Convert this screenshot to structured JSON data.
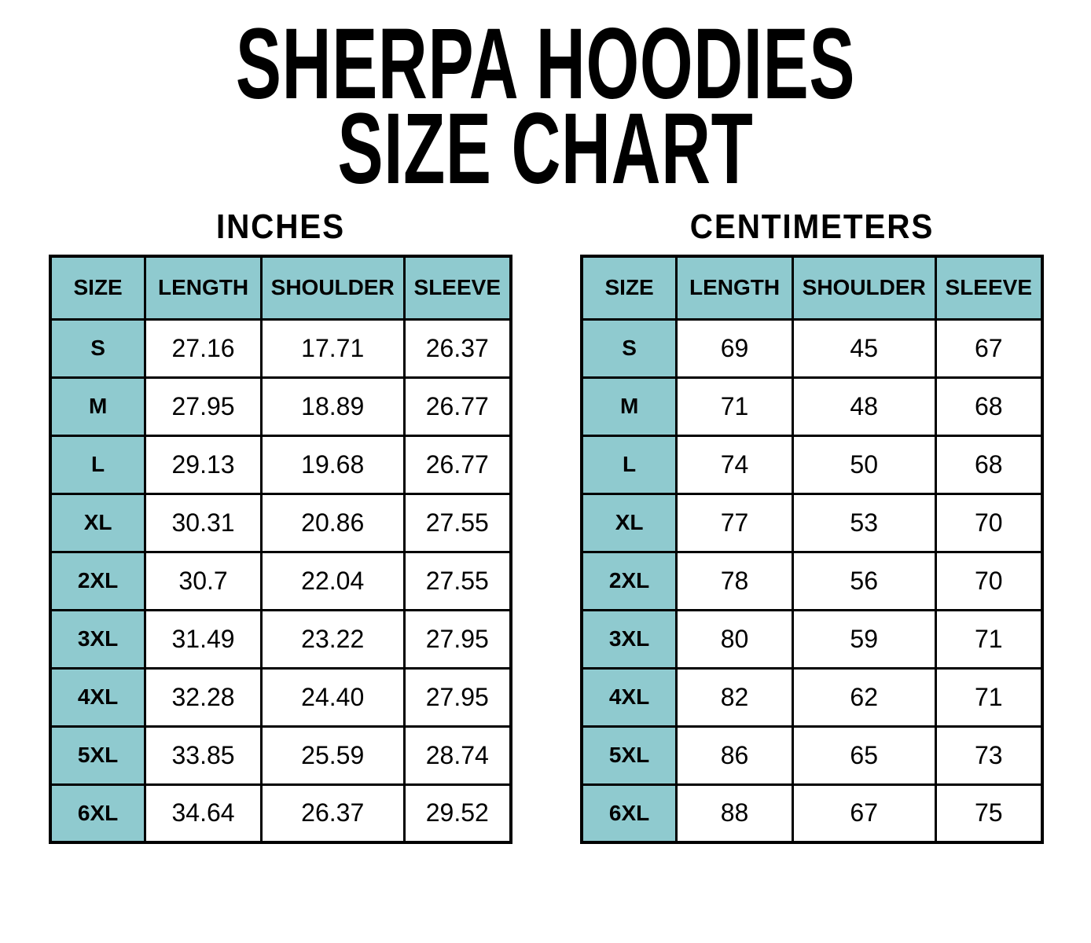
{
  "title": {
    "line1": "SHERPA HOODIES",
    "line2": "SIZE CHART"
  },
  "colors": {
    "header_fill": "#8FCACF",
    "border": "#000000",
    "background": "#FFFFFF",
    "text": "#000000"
  },
  "chart_data": [
    {
      "type": "table",
      "title": "INCHES",
      "columns": [
        "SIZE",
        "LENGTH",
        "SHOULDER",
        "SLEEVE"
      ],
      "rows": [
        [
          "S",
          "27.16",
          "17.71",
          "26.37"
        ],
        [
          "M",
          "27.95",
          "18.89",
          "26.77"
        ],
        [
          "L",
          "29.13",
          "19.68",
          "26.77"
        ],
        [
          "XL",
          "30.31",
          "20.86",
          "27.55"
        ],
        [
          "2XL",
          "30.7",
          "22.04",
          "27.55"
        ],
        [
          "3XL",
          "31.49",
          "23.22",
          "27.95"
        ],
        [
          "4XL",
          "32.28",
          "24.40",
          "27.95"
        ],
        [
          "5XL",
          "33.85",
          "25.59",
          "28.74"
        ],
        [
          "6XL",
          "34.64",
          "26.37",
          "29.52"
        ]
      ]
    },
    {
      "type": "table",
      "title": "CENTIMETERS",
      "columns": [
        "SIZE",
        "LENGTH",
        "SHOULDER",
        "SLEEVE"
      ],
      "rows": [
        [
          "S",
          "69",
          "45",
          "67"
        ],
        [
          "M",
          "71",
          "48",
          "68"
        ],
        [
          "L",
          "74",
          "50",
          "68"
        ],
        [
          "XL",
          "77",
          "53",
          "70"
        ],
        [
          "2XL",
          "78",
          "56",
          "70"
        ],
        [
          "3XL",
          "80",
          "59",
          "71"
        ],
        [
          "4XL",
          "82",
          "62",
          "71"
        ],
        [
          "5XL",
          "86",
          "65",
          "73"
        ],
        [
          "6XL",
          "88",
          "67",
          "75"
        ]
      ]
    }
  ]
}
